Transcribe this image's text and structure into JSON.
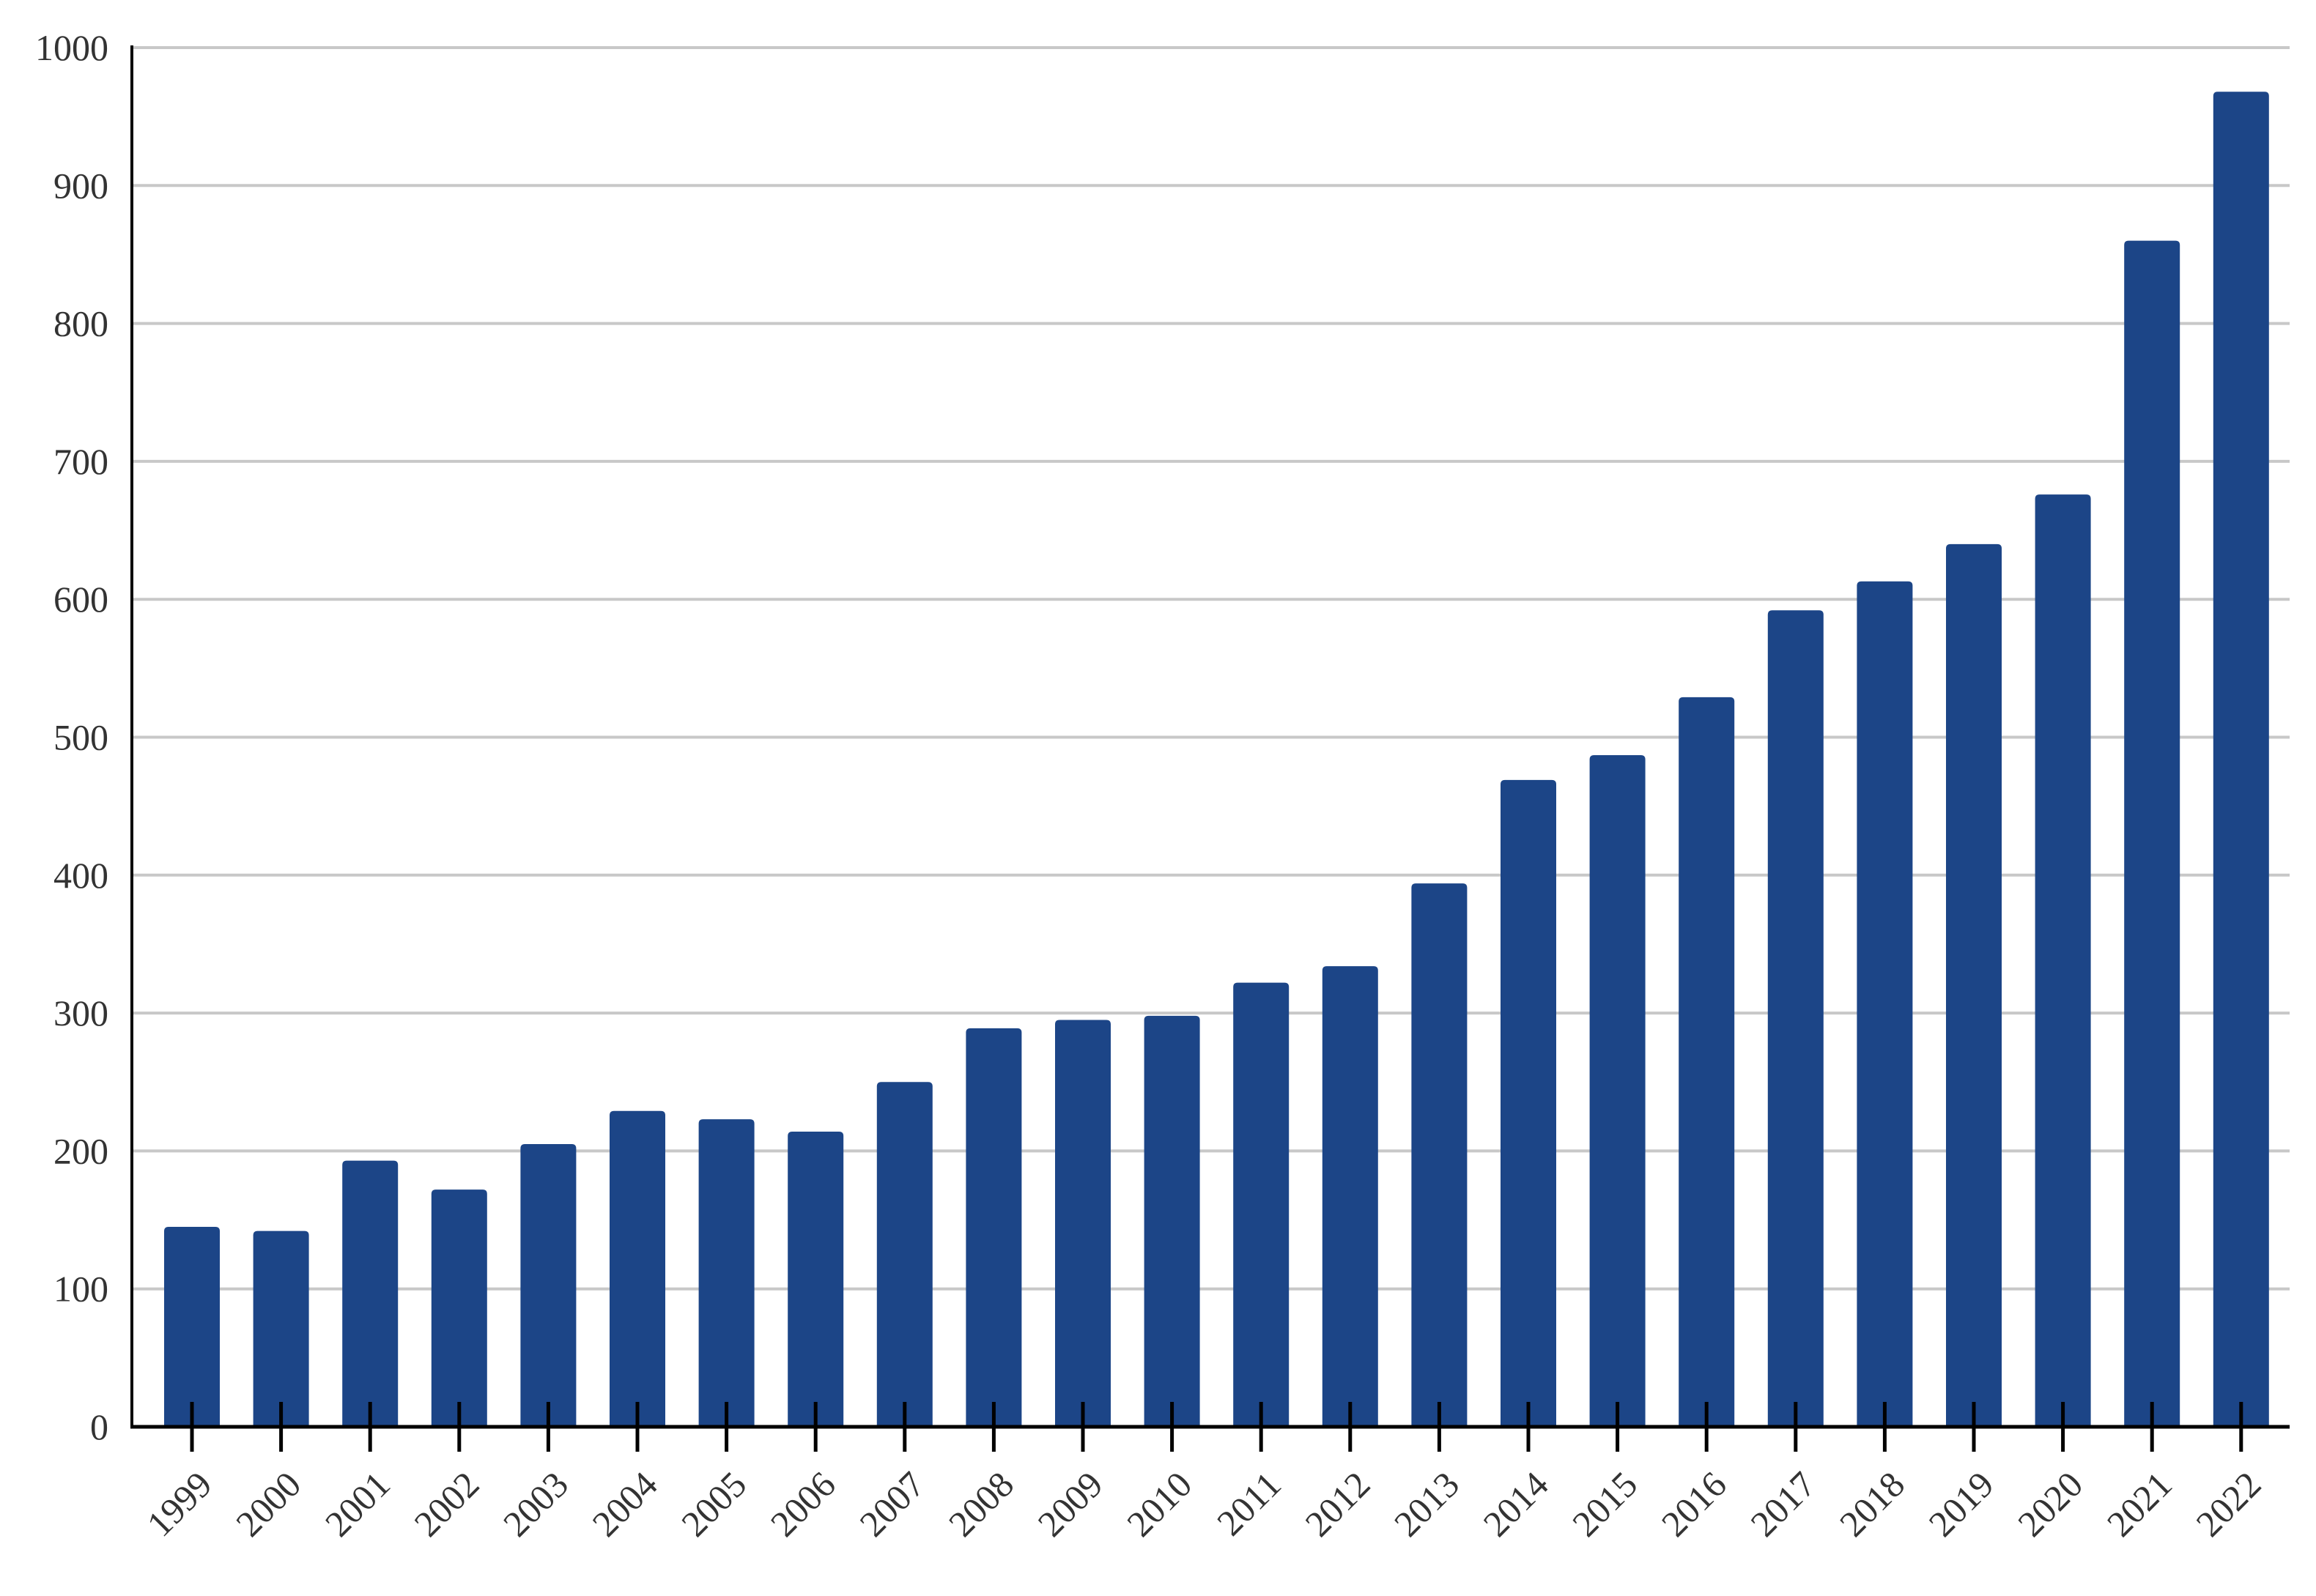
{
  "chart_data": {
    "type": "bar",
    "title": "",
    "xlabel": "",
    "ylabel": "",
    "categories": [
      "1999",
      "2000",
      "2001",
      "2002",
      "2003",
      "2004",
      "2005",
      "2006",
      "2007",
      "2008",
      "2009",
      "2010",
      "2011",
      "2012",
      "2013",
      "2014",
      "2015",
      "2016",
      "2017",
      "2018",
      "2019",
      "2020",
      "2021",
      "2022"
    ],
    "values": [
      145,
      142,
      193,
      172,
      205,
      229,
      223,
      214,
      250,
      289,
      295,
      298,
      322,
      334,
      394,
      469,
      487,
      529,
      592,
      613,
      640,
      676,
      860,
      968
    ],
    "ylim": [
      0,
      1000
    ],
    "yticks": [
      0,
      100,
      200,
      300,
      400,
      500,
      600,
      700,
      800,
      900,
      1000
    ],
    "grid": true,
    "legend": "none",
    "colors": {
      "bar": "#1c4587",
      "grid": "#c8c8c8",
      "axis": "#000000",
      "text": "#333333"
    }
  }
}
